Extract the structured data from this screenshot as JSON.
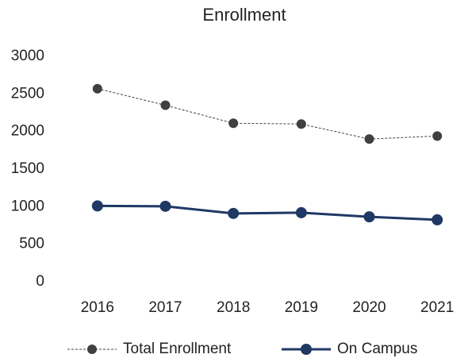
{
  "chart_data": {
    "type": "line",
    "title": "Enrollment",
    "categories": [
      "2016",
      "2017",
      "2018",
      "2019",
      "2020",
      "2021"
    ],
    "series": [
      {
        "name": "Total Enrollment",
        "color": "#404040",
        "line_style": "dashed",
        "values": [
          2570,
          2350,
          2110,
          2100,
          1900,
          1940
        ]
      },
      {
        "name": "On Campus",
        "color": "#1f3864",
        "line_style": "solid",
        "values": [
          1010,
          1005,
          910,
          920,
          865,
          825
        ]
      }
    ],
    "ylim": [
      0,
      3000
    ],
    "yticks": [
      0,
      500,
      1000,
      1500,
      2000,
      2500,
      3000
    ],
    "grid": false,
    "legend": "bottom"
  }
}
